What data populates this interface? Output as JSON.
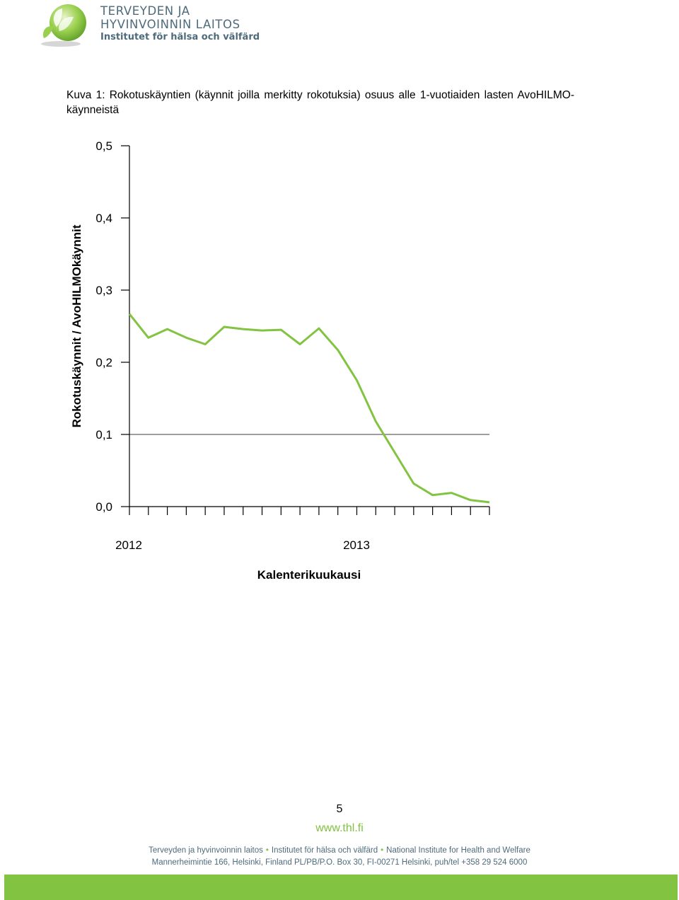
{
  "header": {
    "logo_line1": "TERVEYDEN JA",
    "logo_line2": "HYVINVOINNIN LAITOS",
    "logo_line3": "Institutet för hälsa och välfärd",
    "logo_colors": {
      "text": "#4e6b7b",
      "leaf": "#80c342"
    }
  },
  "caption": "Kuva 1: Rokotuskäyntien (käynnit joilla merkitty rokotuksia) osuus alle 1-vuotiaiden lasten AvoHILMO-käynneistä",
  "chart_data": {
    "type": "line",
    "title": "",
    "ylabel": "Rokotuskäynnit / AvoHILMOkäynnit",
    "xlabel": "Kalenterikuukausi",
    "ylim": [
      0,
      0.5
    ],
    "y_ticks": [
      "0,0",
      "0,1",
      "0,2",
      "0,3",
      "0,4",
      "0,5"
    ],
    "year_labels": [
      "2012",
      "2013"
    ],
    "x": [
      "2012-01",
      "2012-02",
      "2012-03",
      "2012-04",
      "2012-05",
      "2012-06",
      "2012-07",
      "2012-08",
      "2012-09",
      "2012-10",
      "2012-11",
      "2012-12",
      "2013-01",
      "2013-02",
      "2013-03",
      "2013-04",
      "2013-05",
      "2013-06",
      "2013-07",
      "2013-08"
    ],
    "series": [
      {
        "values": [
          0.267,
          0.234,
          0.246,
          0.234,
          0.225,
          0.249,
          0.246,
          0.244,
          0.245,
          0.225,
          0.247,
          0.217,
          0.175,
          0.118,
          0.075,
          0.032,
          0.016,
          0.019,
          0.009,
          0.006
        ]
      }
    ],
    "reference_line": 0.1,
    "colors": {
      "line": "#82c341",
      "axis": "#000000",
      "reference": "#7f7f7f"
    },
    "grid": false
  },
  "page_number": "5",
  "website": "www.thl.fi",
  "footer": {
    "org_fi": "Terveyden ja hyvinvoinnin laitos",
    "org_sv": "Institutet för hälsa och välfärd",
    "org_en": "National Institute for Health and Welfare",
    "address": "Mannerheimintie 166, Helsinki, Finland PL/PB/P.O. Box 30, FI-00271 Helsinki, puh/tel +358 29 524 6000"
  },
  "colors": {
    "footer_bar": "#82c341",
    "footer_text": "#4e6b7b",
    "link": "#80c342"
  }
}
